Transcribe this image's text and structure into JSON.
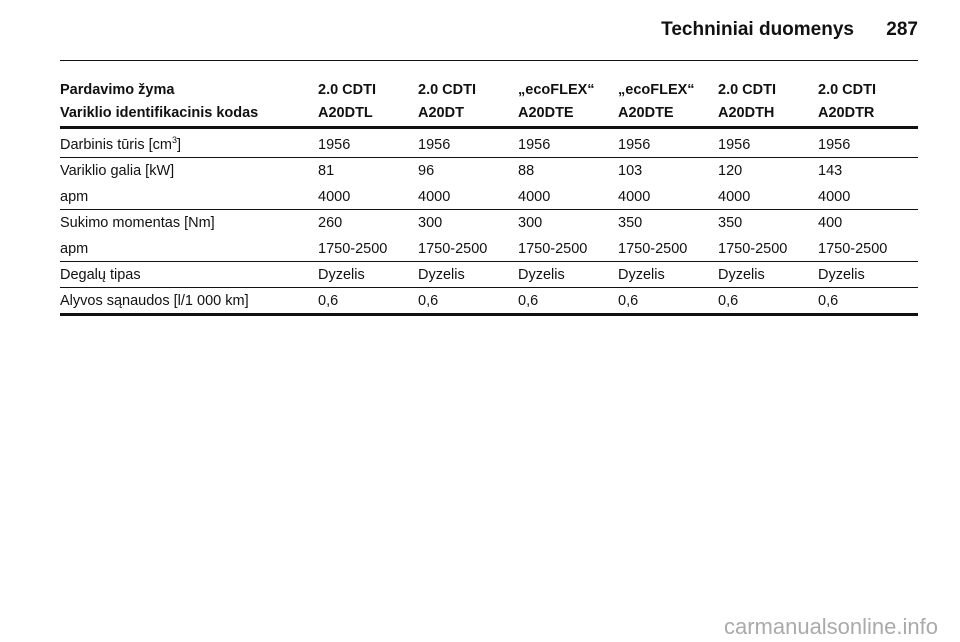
{
  "header": {
    "title": "Techniniai duomenys",
    "page": "287"
  },
  "table": {
    "header": [
      [
        "Pardavimo žyma",
        "2.0 CDTI",
        "2.0 CDTI",
        "„ecoFLEX“",
        "„ecoFLEX“",
        "2.0 CDTI",
        "2.0 CDTI"
      ],
      [
        "Variklio identifikacinis kodas",
        "A20DTL",
        "A20DT",
        "A20DTE",
        "A20DTE",
        "A20DTH",
        "A20DTR"
      ]
    ],
    "groups": [
      [
        [
          {
            "text": "Darbinis tūris [cm",
            "sup": "3",
            "after": "]"
          },
          "1956",
          "1956",
          "1956",
          "1956",
          "1956",
          "1956"
        ]
      ],
      [
        [
          "Variklio galia [kW]",
          "81",
          "96",
          "88",
          "103",
          "120",
          "143"
        ],
        [
          "apm",
          "4000",
          "4000",
          "4000",
          "4000",
          "4000",
          "4000"
        ]
      ],
      [
        [
          "Sukimo momentas [Nm]",
          "260",
          "300",
          "300",
          "350",
          "350",
          "400"
        ],
        [
          "apm",
          "1750-2500",
          "1750-2500",
          "1750-2500",
          "1750-2500",
          "1750-2500",
          "1750-2500"
        ]
      ],
      [
        [
          "Degalų tipas",
          "Dyzelis",
          "Dyzelis",
          "Dyzelis",
          "Dyzelis",
          "Dyzelis",
          "Dyzelis"
        ]
      ],
      [
        [
          "Alyvos sąnaudos [l/1 000 km]",
          "0,6",
          "0,6",
          "0,6",
          "0,6",
          "0,6",
          "0,6"
        ]
      ]
    ]
  },
  "watermark": "carmanualsonline.info"
}
